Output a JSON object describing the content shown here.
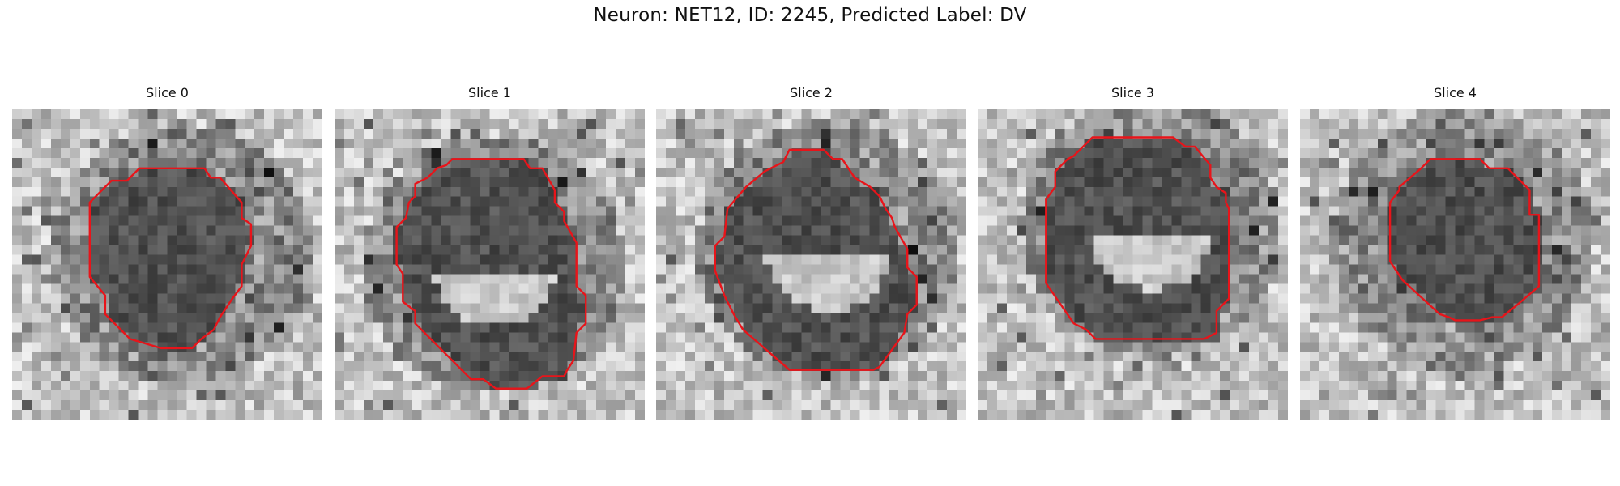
{
  "figure": {
    "title": "Neuron: NET12, ID: 2245, Predicted Label: DV"
  },
  "contour_color": "#e8141a",
  "slices": [
    {
      "title": "Slice 0",
      "contour": [
        [
          0.51,
          0.19
        ],
        [
          0.62,
          0.19
        ],
        [
          0.64,
          0.22
        ],
        [
          0.67,
          0.22
        ],
        [
          0.74,
          0.3
        ],
        [
          0.74,
          0.35
        ],
        [
          0.77,
          0.37
        ],
        [
          0.77,
          0.44
        ],
        [
          0.74,
          0.5
        ],
        [
          0.74,
          0.57
        ],
        [
          0.71,
          0.61
        ],
        [
          0.67,
          0.67
        ],
        [
          0.65,
          0.71
        ],
        [
          0.61,
          0.74
        ],
        [
          0.58,
          0.77
        ],
        [
          0.48,
          0.77
        ],
        [
          0.38,
          0.74
        ],
        [
          0.3,
          0.66
        ],
        [
          0.3,
          0.6
        ],
        [
          0.25,
          0.54
        ],
        [
          0.25,
          0.3
        ],
        [
          0.32,
          0.23
        ],
        [
          0.37,
          0.23
        ],
        [
          0.41,
          0.19
        ]
      ]
    },
    {
      "title": "Slice 1",
      "contour": [
        [
          0.38,
          0.16
        ],
        [
          0.61,
          0.16
        ],
        [
          0.63,
          0.19
        ],
        [
          0.67,
          0.19
        ],
        [
          0.71,
          0.26
        ],
        [
          0.71,
          0.3
        ],
        [
          0.74,
          0.33
        ],
        [
          0.74,
          0.36
        ],
        [
          0.78,
          0.43
        ],
        [
          0.78,
          0.57
        ],
        [
          0.81,
          0.6
        ],
        [
          0.81,
          0.69
        ],
        [
          0.78,
          0.72
        ],
        [
          0.77,
          0.81
        ],
        [
          0.75,
          0.84
        ],
        [
          0.74,
          0.86
        ],
        [
          0.67,
          0.86
        ],
        [
          0.62,
          0.9
        ],
        [
          0.52,
          0.9
        ],
        [
          0.48,
          0.87
        ],
        [
          0.44,
          0.87
        ],
        [
          0.26,
          0.69
        ],
        [
          0.26,
          0.65
        ],
        [
          0.22,
          0.62
        ],
        [
          0.22,
          0.53
        ],
        [
          0.2,
          0.5
        ],
        [
          0.2,
          0.38
        ],
        [
          0.23,
          0.35
        ],
        [
          0.24,
          0.3
        ],
        [
          0.26,
          0.28
        ],
        [
          0.26,
          0.24
        ],
        [
          0.3,
          0.22
        ],
        [
          0.33,
          0.19
        ],
        [
          0.36,
          0.18
        ]
      ]
    },
    {
      "title": "Slice 2",
      "contour": [
        [
          0.43,
          0.13
        ],
        [
          0.54,
          0.13
        ],
        [
          0.57,
          0.16
        ],
        [
          0.6,
          0.16
        ],
        [
          0.64,
          0.22
        ],
        [
          0.69,
          0.25
        ],
        [
          0.72,
          0.28
        ],
        [
          0.74,
          0.32
        ],
        [
          0.76,
          0.35
        ],
        [
          0.77,
          0.38
        ],
        [
          0.81,
          0.45
        ],
        [
          0.81,
          0.51
        ],
        [
          0.84,
          0.54
        ],
        [
          0.84,
          0.63
        ],
        [
          0.81,
          0.66
        ],
        [
          0.8,
          0.72
        ],
        [
          0.72,
          0.83
        ],
        [
          0.7,
          0.84
        ],
        [
          0.68,
          0.84
        ],
        [
          0.43,
          0.84
        ],
        [
          0.28,
          0.71
        ],
        [
          0.25,
          0.66
        ],
        [
          0.22,
          0.6
        ],
        [
          0.19,
          0.52
        ],
        [
          0.19,
          0.44
        ],
        [
          0.22,
          0.41
        ],
        [
          0.23,
          0.32
        ],
        [
          0.29,
          0.25
        ],
        [
          0.35,
          0.2
        ],
        [
          0.41,
          0.17
        ]
      ]
    },
    {
      "title": "Slice 3",
      "contour": [
        [
          0.37,
          0.09
        ],
        [
          0.63,
          0.09
        ],
        [
          0.67,
          0.12
        ],
        [
          0.7,
          0.12
        ],
        [
          0.75,
          0.18
        ],
        [
          0.75,
          0.22
        ],
        [
          0.77,
          0.25
        ],
        [
          0.8,
          0.27
        ],
        [
          0.8,
          0.3
        ],
        [
          0.81,
          0.32
        ],
        [
          0.81,
          0.61
        ],
        [
          0.77,
          0.65
        ],
        [
          0.77,
          0.72
        ],
        [
          0.73,
          0.74
        ],
        [
          0.72,
          0.74
        ],
        [
          0.38,
          0.74
        ],
        [
          0.35,
          0.71
        ],
        [
          0.31,
          0.69
        ],
        [
          0.22,
          0.56
        ],
        [
          0.22,
          0.29
        ],
        [
          0.25,
          0.25
        ],
        [
          0.25,
          0.2
        ],
        [
          0.29,
          0.16
        ],
        [
          0.31,
          0.15
        ]
      ]
    },
    {
      "title": "Slice 4",
      "contour": [
        [
          0.42,
          0.16
        ],
        [
          0.58,
          0.16
        ],
        [
          0.61,
          0.19
        ],
        [
          0.67,
          0.19
        ],
        [
          0.74,
          0.26
        ],
        [
          0.74,
          0.34
        ],
        [
          0.77,
          0.34
        ],
        [
          0.77,
          0.57
        ],
        [
          0.7,
          0.63
        ],
        [
          0.65,
          0.67
        ],
        [
          0.62,
          0.67
        ],
        [
          0.58,
          0.68
        ],
        [
          0.5,
          0.68
        ],
        [
          0.48,
          0.67
        ],
        [
          0.45,
          0.66
        ],
        [
          0.33,
          0.55
        ],
        [
          0.29,
          0.49
        ],
        [
          0.29,
          0.45
        ],
        [
          0.29,
          0.3
        ],
        [
          0.32,
          0.26
        ],
        [
          0.32,
          0.25
        ],
        [
          0.39,
          0.19
        ]
      ]
    }
  ]
}
